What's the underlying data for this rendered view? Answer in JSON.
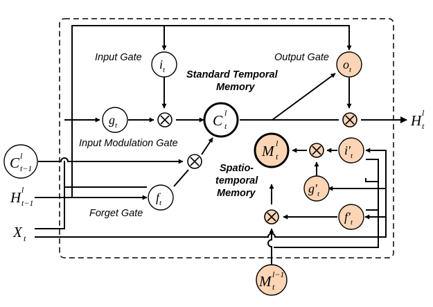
{
  "colors": {
    "line": "#000000",
    "gate_fill": "#ffffff",
    "st_fill": "#fbd5b5"
  },
  "labels": {
    "input_gate": "Input Gate",
    "output_gate": "Output Gate",
    "input_modulation_gate": "Input Modulation Gate",
    "forget_gate": "Forget Gate",
    "standard_temporal_line1": "Standard Temporal",
    "standard_temporal_line2": "Memory",
    "spatio_line1": "Spatio-",
    "spatio_line2": "temporal",
    "spatio_line3": "Memory"
  },
  "nodes": {
    "i": {
      "base": "i",
      "sub": "t",
      "sup": ""
    },
    "g": {
      "base": "g",
      "sub": "t",
      "sup": ""
    },
    "f": {
      "base": "f",
      "sub": "t",
      "sup": ""
    },
    "o": {
      "base": "o",
      "sub": "t",
      "sup": ""
    },
    "c": {
      "base": "C",
      "sub": "t",
      "sup": "l"
    },
    "m": {
      "base": "M",
      "sub": "t",
      "sup": "l"
    },
    "m_prev": {
      "base": "M",
      "sub": "t",
      "sup": "l−1"
    },
    "c_prev": {
      "base": "C",
      "sub": "t−1",
      "sup": "l"
    },
    "ip": {
      "base": "i′",
      "sub": "t",
      "sup": ""
    },
    "gp": {
      "base": "g′",
      "sub": "t",
      "sup": ""
    },
    "fp": {
      "base": "f′",
      "sub": "t",
      "sup": ""
    }
  },
  "io": {
    "h_prev": {
      "base": "H",
      "sub": "t−1",
      "sup": "l"
    },
    "x": {
      "base": "X",
      "sub": "t",
      "sup": ""
    },
    "h_out": {
      "base": "H",
      "sub": "t",
      "sup": "l"
    }
  },
  "multiply_symbol": "×"
}
